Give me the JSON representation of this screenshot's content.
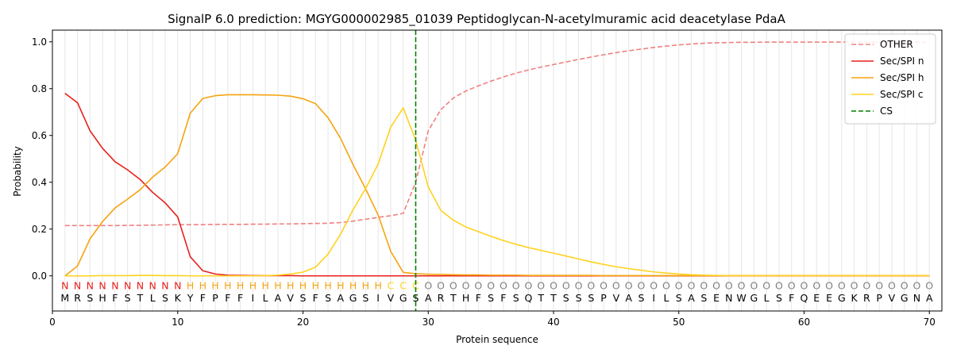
{
  "chart_data": {
    "type": "line",
    "title": "SignalP 6.0 prediction: MGYG000002985_01039 Peptidoglycan-N-acetylmuramic acid deacetylase PdaA",
    "xlabel": "Protein sequence",
    "ylabel": "Probability",
    "xlim": [
      0,
      71
    ],
    "ylim": [
      -0.15,
      1.05
    ],
    "xticks": [
      0,
      10,
      20,
      30,
      40,
      50,
      60,
      70
    ],
    "yticks": [
      0.0,
      0.2,
      0.4,
      0.6,
      0.8,
      1.0
    ],
    "xtick_labels": [
      "0",
      "10",
      "20",
      "30",
      "40",
      "50",
      "60",
      "70"
    ],
    "ytick_labels": [
      "0.0",
      "0.2",
      "0.4",
      "0.6",
      "0.8",
      "1.0"
    ],
    "x": [
      1,
      2,
      3,
      4,
      5,
      6,
      7,
      8,
      9,
      10,
      11,
      12,
      13,
      14,
      15,
      16,
      17,
      18,
      19,
      20,
      21,
      22,
      23,
      24,
      25,
      26,
      27,
      28,
      29,
      30,
      31,
      32,
      33,
      34,
      35,
      36,
      37,
      38,
      39,
      40,
      41,
      42,
      43,
      44,
      45,
      46,
      47,
      48,
      49,
      50,
      51,
      52,
      53,
      54,
      55,
      56,
      57,
      58,
      59,
      60,
      61,
      62,
      63,
      64,
      65,
      66,
      67,
      68,
      69,
      70
    ],
    "series": [
      {
        "name": "OTHER",
        "color": "#f08080",
        "dashed": true,
        "values": [
          0.215,
          0.215,
          0.215,
          0.215,
          0.215,
          0.216,
          0.216,
          0.217,
          0.218,
          0.219,
          0.219,
          0.219,
          0.22,
          0.22,
          0.22,
          0.221,
          0.221,
          0.222,
          0.222,
          0.223,
          0.224,
          0.225,
          0.228,
          0.234,
          0.242,
          0.25,
          0.257,
          0.267,
          0.4,
          0.62,
          0.71,
          0.76,
          0.79,
          0.812,
          0.832,
          0.85,
          0.866,
          0.88,
          0.892,
          0.903,
          0.914,
          0.925,
          0.935,
          0.945,
          0.954,
          0.962,
          0.969,
          0.976,
          0.982,
          0.987,
          0.991,
          0.994,
          0.996,
          0.997,
          0.998,
          0.998,
          0.999,
          0.999,
          0.999,
          0.999,
          0.999,
          0.999,
          0.999,
          0.999,
          0.999,
          0.999,
          0.999,
          0.999,
          0.999,
          0.999
        ]
      },
      {
        "name": "Sec/SPI n",
        "color": "#e8201c",
        "dashed": false,
        "values": [
          0.78,
          0.74,
          0.62,
          0.545,
          0.488,
          0.453,
          0.412,
          0.357,
          0.312,
          0.252,
          0.082,
          0.022,
          0.008,
          0.003,
          0.002,
          0.001,
          0.001,
          0.001,
          0.001,
          0.0,
          0.0,
          0.0,
          0.0,
          0.0,
          0.0,
          0.0,
          0.0,
          0.0,
          0.0,
          0.0,
          0.0,
          0.0,
          0.0,
          0.0,
          0.0,
          0.0,
          0.0,
          0.0,
          0.0,
          0.0,
          0.0,
          0.0,
          0.0,
          0.0,
          0.0,
          0.0,
          0.0,
          0.0,
          0.0,
          0.0,
          0.0,
          0.0,
          0.0,
          0.0,
          0.0,
          0.0,
          0.0,
          0.0,
          0.0,
          0.0,
          0.0,
          0.0,
          0.0,
          0.0,
          0.0,
          0.0,
          0.0,
          0.0,
          0.0,
          0.0
        ]
      },
      {
        "name": "Sec/SPI h",
        "color": "#f5a40f",
        "dashed": false,
        "values": [
          0.0,
          0.042,
          0.158,
          0.232,
          0.29,
          0.328,
          0.368,
          0.422,
          0.465,
          0.522,
          0.695,
          0.758,
          0.77,
          0.774,
          0.774,
          0.774,
          0.773,
          0.772,
          0.768,
          0.757,
          0.736,
          0.676,
          0.588,
          0.475,
          0.372,
          0.26,
          0.105,
          0.015,
          0.009,
          0.007,
          0.006,
          0.005,
          0.004,
          0.004,
          0.003,
          0.003,
          0.003,
          0.002,
          0.002,
          0.002,
          0.002,
          0.002,
          0.002,
          0.001,
          0.001,
          0.001,
          0.001,
          0.001,
          0.001,
          0.001,
          0.001,
          0.001,
          0.001,
          0.001,
          0.001,
          0.001,
          0.001,
          0.001,
          0.001,
          0.001,
          0.001,
          0.001,
          0.001,
          0.001,
          0.001,
          0.001,
          0.001,
          0.001,
          0.001,
          0.001
        ]
      },
      {
        "name": "Sec/SPI c",
        "color": "#ffd21e",
        "dashed": false,
        "values": [
          0.0,
          0.0,
          0.0,
          0.001,
          0.001,
          0.001,
          0.002,
          0.002,
          0.001,
          0.001,
          0.0,
          0.0,
          0.0,
          0.0,
          0.0,
          0.0,
          0.001,
          0.003,
          0.008,
          0.016,
          0.037,
          0.093,
          0.178,
          0.283,
          0.373,
          0.478,
          0.635,
          0.718,
          0.58,
          0.38,
          0.28,
          0.238,
          0.209,
          0.189,
          0.169,
          0.151,
          0.135,
          0.121,
          0.109,
          0.097,
          0.085,
          0.072,
          0.06,
          0.049,
          0.039,
          0.031,
          0.024,
          0.017,
          0.012,
          0.008,
          0.005,
          0.003,
          0.002,
          0.001,
          0.001,
          0.001,
          0.001,
          0.001,
          0.001,
          0.001,
          0.001,
          0.001,
          0.001,
          0.001,
          0.001,
          0.001,
          0.001,
          0.001,
          0.001,
          0.001
        ]
      }
    ],
    "cleavage_site": {
      "name": "CS",
      "x": 29,
      "color": "#007f00"
    },
    "legend": {
      "placement": "top-right",
      "entries": [
        {
          "label": "OTHER",
          "color": "#f08080",
          "style": "dashed"
        },
        {
          "label": "Sec/SPI n",
          "color": "#e8201c",
          "style": "solid"
        },
        {
          "label": "Sec/SPI h",
          "color": "#f5a40f",
          "style": "solid"
        },
        {
          "label": "Sec/SPI c",
          "color": "#ffd21e",
          "style": "solid"
        },
        {
          "label": "CS",
          "color": "#007f00",
          "style": "dashed"
        }
      ]
    },
    "sequence": {
      "residues": [
        "M",
        "R",
        "S",
        "H",
        "F",
        "S",
        "T",
        "L",
        "S",
        "K",
        "Y",
        "F",
        "P",
        "F",
        "F",
        "I",
        "L",
        "A",
        "V",
        "S",
        "F",
        "S",
        "A",
        "G",
        "S",
        "I",
        "V",
        "G",
        "S",
        "A",
        "R",
        "T",
        "H",
        "F",
        "S",
        "F",
        "S",
        "Q",
        "T",
        "T",
        "S",
        "S",
        "S",
        "P",
        "V",
        "A",
        "S",
        "I",
        "L",
        "S",
        "A",
        "S",
        "E",
        "N",
        "W",
        "G",
        "L",
        "S",
        "F",
        "Q",
        "E",
        "E",
        "G",
        "K",
        "R",
        "P",
        "V",
        "G",
        "N",
        "A"
      ],
      "labels": [
        "N",
        "N",
        "N",
        "N",
        "N",
        "N",
        "N",
        "N",
        "N",
        "N",
        "H",
        "H",
        "H",
        "H",
        "H",
        "H",
        "H",
        "H",
        "H",
        "H",
        "H",
        "H",
        "H",
        "H",
        "H",
        "H",
        "C",
        "C",
        "C",
        "O",
        "O",
        "O",
        "O",
        "O",
        "O",
        "O",
        "O",
        "O",
        "O",
        "O",
        "O",
        "O",
        "O",
        "O",
        "O",
        "O",
        "O",
        "O",
        "O",
        "O",
        "O",
        "O",
        "O",
        "O",
        "O",
        "O",
        "O",
        "O",
        "O",
        "O",
        "O",
        "O",
        "O",
        "O",
        "O",
        "O",
        "O",
        "O",
        "O",
        "O"
      ],
      "label_colors": {
        "N": "#e8201c",
        "H": "#f5a40f",
        "C": "#ffd21e",
        "O": "#808080"
      }
    },
    "grid": {
      "vertical_per_residue": true,
      "horizontal": false
    }
  }
}
